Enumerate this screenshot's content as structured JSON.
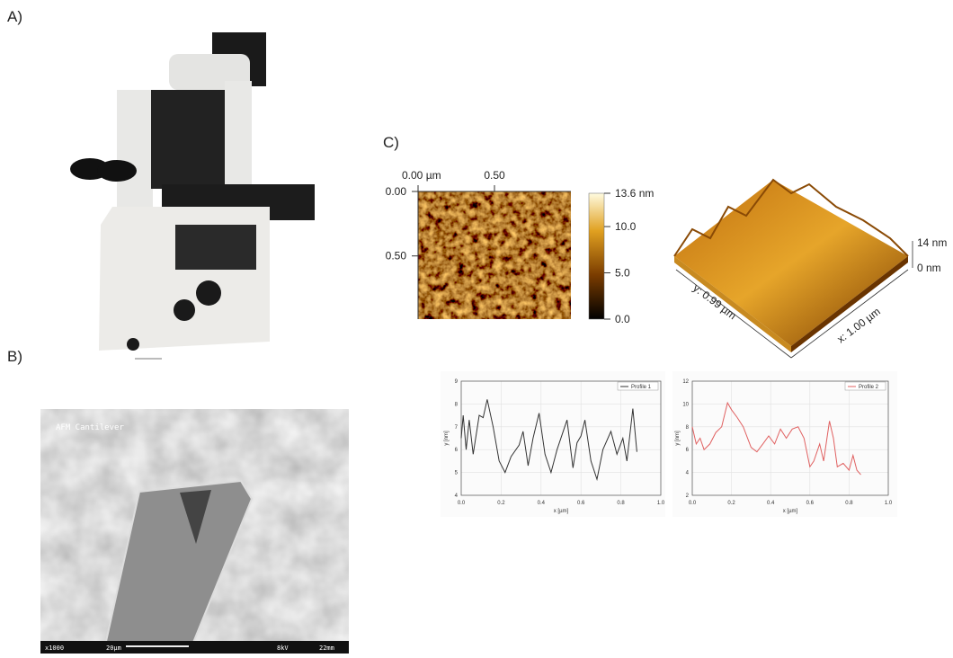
{
  "panels": {
    "a": {
      "label": "A)"
    },
    "b": {
      "label": "B)",
      "image_title": "AFM Cantilever",
      "footer": [
        "x1000",
        "20µm",
        "8kV",
        "22mm"
      ]
    },
    "c": {
      "label": "C)",
      "afm_map": {
        "xlim": [
          0,
          1.0
        ],
        "ylim": [
          0,
          0.99
        ],
        "xticks": [
          {
            "value": 0,
            "label": "0.00 µm"
          },
          {
            "value": 0.5,
            "label": "0.50"
          }
        ],
        "yticks": [
          {
            "value": 0,
            "label": "0.00"
          },
          {
            "value": 0.5,
            "label": "0.50"
          }
        ],
        "colorbar": {
          "lim": [
            0,
            13.6
          ],
          "ticks": [
            {
              "value": 13.6,
              "label": "13.6 nm"
            },
            {
              "value": 10,
              "label": "10.0"
            },
            {
              "value": 5,
              "label": "5.0"
            },
            {
              "value": 0,
              "label": "0.0"
            }
          ]
        }
      },
      "surface_3d": {
        "z_top": "14 nm",
        "z_bottom": "0 nm",
        "y_label": "y: 0.99 µm",
        "x_label": "x: 1.00 µm"
      }
    }
  },
  "chart_data": [
    {
      "type": "line",
      "xlabel": "x [µm]",
      "ylabel": "y [nm]",
      "x": [
        0,
        0.01,
        0.025,
        0.04,
        0.06,
        0.09,
        0.11,
        0.13,
        0.16,
        0.19,
        0.22,
        0.25,
        0.29,
        0.31,
        0.335,
        0.36,
        0.39,
        0.42,
        0.45,
        0.48,
        0.53,
        0.56,
        0.58,
        0.6,
        0.62,
        0.65,
        0.68,
        0.71,
        0.75,
        0.78,
        0.81,
        0.83,
        0.86,
        0.88
      ],
      "series": [
        {
          "name": "Profile 1",
          "color": "#333333",
          "values": [
            6.5,
            7.5,
            6.0,
            7.3,
            5.8,
            7.5,
            7.4,
            8.2,
            7.0,
            5.5,
            5.0,
            5.7,
            6.2,
            6.8,
            5.3,
            6.5,
            7.6,
            5.8,
            5.0,
            6.0,
            7.3,
            5.2,
            6.3,
            6.6,
            7.3,
            5.5,
            4.7,
            6.0,
            6.8,
            5.8,
            6.5,
            5.5,
            7.8,
            5.9
          ]
        }
      ],
      "xlim": [
        0,
        1.0
      ],
      "ylim": [
        4,
        9
      ],
      "xticks": [
        {
          "value": 0,
          "label": "0.0"
        },
        {
          "value": 0.2,
          "label": "0.2"
        },
        {
          "value": 0.4,
          "label": "0.4"
        },
        {
          "value": 0.6,
          "label": "0.6"
        },
        {
          "value": 0.8,
          "label": "0.8"
        },
        {
          "value": 1.0,
          "label": "1.0"
        }
      ],
      "yticks": [
        4,
        5,
        6,
        7,
        8,
        9
      ],
      "grid": true
    },
    {
      "type": "line",
      "xlabel": "x [µm]",
      "ylabel": "y [nm]",
      "x": [
        0,
        0.02,
        0.04,
        0.06,
        0.09,
        0.12,
        0.15,
        0.18,
        0.2,
        0.23,
        0.26,
        0.3,
        0.33,
        0.36,
        0.39,
        0.42,
        0.45,
        0.48,
        0.51,
        0.54,
        0.57,
        0.6,
        0.62,
        0.65,
        0.67,
        0.7,
        0.72,
        0.74,
        0.77,
        0.8,
        0.82,
        0.84,
        0.86
      ],
      "series": [
        {
          "name": "Profile 2",
          "color": "#e06060",
          "values": [
            8.0,
            6.5,
            7.0,
            6.0,
            6.5,
            7.5,
            8.0,
            10.1,
            9.5,
            8.8,
            8.0,
            6.2,
            5.8,
            6.5,
            7.2,
            6.5,
            7.8,
            7.0,
            7.8,
            8.0,
            7.0,
            4.5,
            5.0,
            6.5,
            5.0,
            8.5,
            7.0,
            4.5,
            4.8,
            4.2,
            5.5,
            4.2,
            3.8
          ]
        }
      ],
      "xlim": [
        0,
        1.0
      ],
      "ylim": [
        2,
        12
      ],
      "xticks": [
        {
          "value": 0,
          "label": "0.0"
        },
        {
          "value": 0.2,
          "label": "0.2"
        },
        {
          "value": 0.4,
          "label": "0.4"
        },
        {
          "value": 0.6,
          "label": "0.6"
        },
        {
          "value": 0.8,
          "label": "0.8"
        },
        {
          "value": 1.0,
          "label": "1.0"
        }
      ],
      "yticks": [
        2,
        4,
        6,
        8,
        10,
        12
      ],
      "grid": true
    }
  ]
}
